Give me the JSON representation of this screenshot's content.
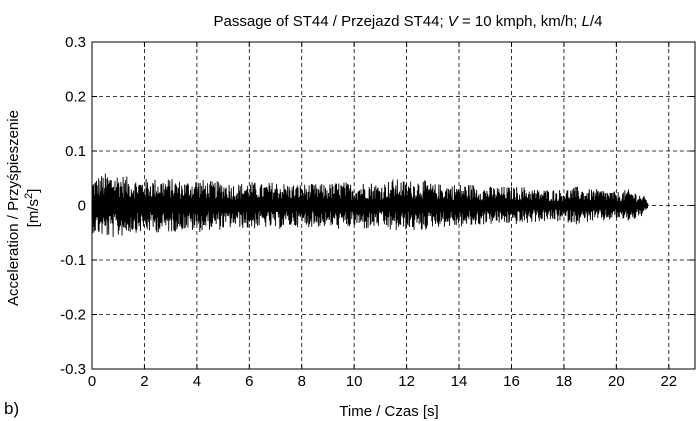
{
  "panel_label": "b)",
  "chart_data": {
    "type": "line",
    "title_parts": [
      {
        "text": "Passage of ST44 / Przejazd ST44; ",
        "italic": false
      },
      {
        "text": "V",
        "italic": true
      },
      {
        "text": " = 10 kmph, km/h; ",
        "italic": false
      },
      {
        "text": "L",
        "italic": true
      },
      {
        "text": "/4",
        "italic": false
      }
    ],
    "xlabel": "Time / Czas [s]",
    "ylabel_line1": "Acceleration / Przyśpieszenie",
    "ylabel_line2_prefix": "[m/s",
    "ylabel_line2_sup": "2",
    "ylabel_line2_suffix": "]",
    "xlim": [
      0,
      23
    ],
    "ylim": [
      -0.3,
      0.3
    ],
    "xticks": [
      0,
      2,
      4,
      6,
      8,
      10,
      12,
      14,
      16,
      18,
      20,
      22
    ],
    "yticks": [
      -0.3,
      -0.2,
      -0.1,
      0,
      0.1,
      0.2,
      0.3
    ],
    "ytick_labels": [
      "-0.3",
      "-0.2",
      "-0.1",
      "0",
      "0.1",
      "0.2",
      "0.3"
    ],
    "grid": true,
    "line_color": "#000000",
    "series": [
      {
        "signal_start": 0,
        "signal_end": 21.2,
        "points": [
          [
            0,
            -0.05
          ],
          [
            0.5,
            0.06
          ],
          [
            1,
            -0.06
          ],
          [
            1.5,
            0.05
          ],
          [
            2,
            -0.05
          ],
          [
            2.5,
            0.05
          ],
          [
            3,
            -0.05
          ],
          [
            3.5,
            0.045
          ],
          [
            4,
            -0.05
          ],
          [
            4.5,
            0.045
          ],
          [
            5,
            -0.045
          ],
          [
            5.5,
            0.04
          ],
          [
            6,
            -0.045
          ],
          [
            6.5,
            0.04
          ],
          [
            7,
            -0.045
          ],
          [
            7.5,
            0.04
          ],
          [
            8,
            -0.04
          ],
          [
            8.5,
            0.04
          ],
          [
            9,
            -0.04
          ],
          [
            9.5,
            0.045
          ],
          [
            10,
            -0.04
          ],
          [
            10.5,
            0.045
          ],
          [
            11,
            -0.04
          ],
          [
            11.5,
            0.05
          ],
          [
            12,
            -0.045
          ],
          [
            12.5,
            0.05
          ],
          [
            13,
            -0.04
          ],
          [
            13.5,
            0.04
          ],
          [
            14,
            -0.04
          ],
          [
            14.5,
            0.04
          ],
          [
            15,
            -0.035
          ],
          [
            15.5,
            0.035
          ],
          [
            16,
            -0.035
          ],
          [
            16.5,
            0.035
          ],
          [
            17,
            -0.03
          ],
          [
            17.5,
            0.03
          ],
          [
            18,
            -0.03
          ],
          [
            18.5,
            0.035
          ],
          [
            19,
            -0.03
          ],
          [
            19.5,
            0.03
          ],
          [
            20,
            -0.025
          ],
          [
            20.5,
            0.03
          ],
          [
            21,
            -0.02
          ],
          [
            21.2,
            0.01
          ]
        ]
      }
    ]
  }
}
